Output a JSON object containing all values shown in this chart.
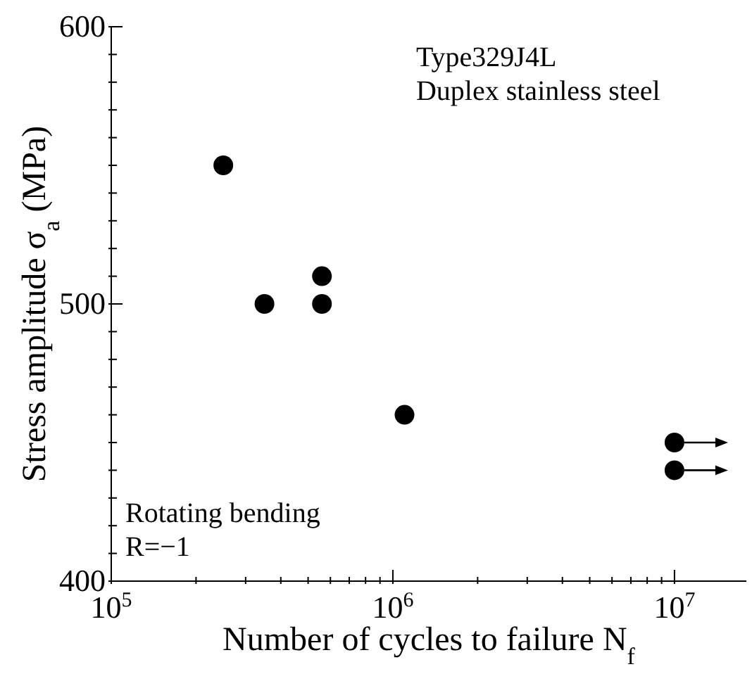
{
  "chart_data": {
    "type": "scatter",
    "xlabel": "Number of cycles to failure  N$_{f}$",
    "ylabel": "Stress amplitude  σ$_{a}$  (MPa)",
    "annotations": [
      "Type329J4L",
      "Duplex stainless steel",
      "Rotating bending",
      "R=−1"
    ],
    "log": "x",
    "marker": "circle",
    "grid": false,
    "legend": false,
    "xlim": [
      100000,
      18000000
    ],
    "xticks": [
      {
        "value": 100000,
        "label": "10$^{5}$"
      },
      {
        "value": 200000,
        "label": null
      },
      {
        "value": 300000,
        "label": null
      },
      {
        "value": 400000,
        "label": null
      },
      {
        "value": 500000,
        "label": null
      },
      {
        "value": 600000,
        "label": null
      },
      {
        "value": 700000,
        "label": null
      },
      {
        "value": 800000,
        "label": null
      },
      {
        "value": 900000,
        "label": null
      },
      {
        "value": 1000000,
        "label": "10$^{6}$"
      },
      {
        "value": 2000000,
        "label": null
      },
      {
        "value": 3000000,
        "label": null
      },
      {
        "value": 4000000,
        "label": null
      },
      {
        "value": 5000000,
        "label": null
      },
      {
        "value": 6000000,
        "label": null
      },
      {
        "value": 7000000,
        "label": null
      },
      {
        "value": 8000000,
        "label": null
      },
      {
        "value": 9000000,
        "label": null
      },
      {
        "value": 10000000,
        "label": "10$^{7}$"
      }
    ],
    "ylim": [
      400,
      600
    ],
    "yticks": [
      400,
      {
        "value": 410,
        "label": null
      },
      {
        "value": 420,
        "label": null
      },
      {
        "value": 430,
        "label": null
      },
      {
        "value": 440,
        "label": null
      },
      {
        "value": 450,
        "label": null
      },
      {
        "value": 460,
        "label": null
      },
      {
        "value": 470,
        "label": null
      },
      {
        "value": 480,
        "label": null
      },
      {
        "value": 490,
        "label": null
      },
      500,
      {
        "value": 510,
        "label": null
      },
      {
        "value": 520,
        "label": null
      },
      {
        "value": 530,
        "label": null
      },
      {
        "value": 540,
        "label": null
      },
      {
        "value": 550,
        "label": null
      },
      {
        "value": 560,
        "label": null
      },
      {
        "value": 570,
        "label": null
      },
      {
        "value": 580,
        "label": null
      },
      {
        "value": 590,
        "label": null
      },
      600
    ],
    "series": [
      {
        "color": "#000000",
        "x": [
          250000,
          350000,
          560000,
          560000,
          1100000
        ],
        "values": [
          550,
          500,
          510,
          500,
          460
        ]
      },
      {
        "color": "#000000",
        "x": [
          10000000,
          10000000
        ],
        "values": [
          450,
          440
        ]
      }
    ]
  }
}
